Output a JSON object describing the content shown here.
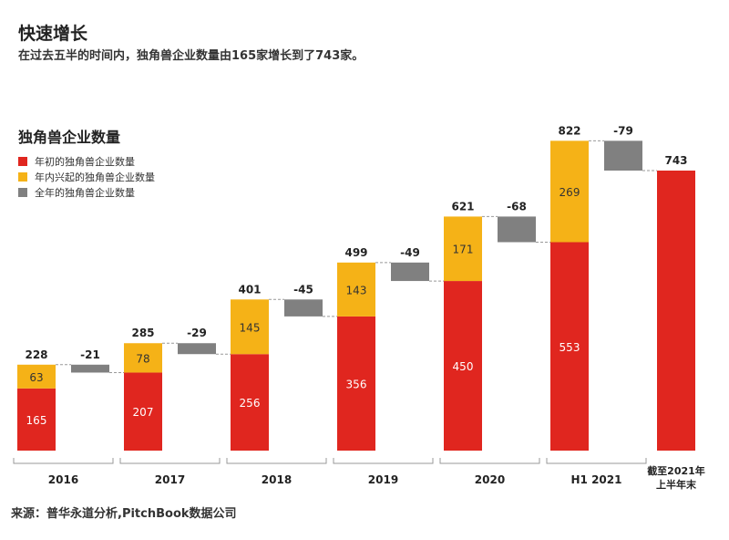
{
  "header": {
    "title": "快速增长",
    "subtitle": "在过去五半的时间内，独角兽企业数量由165家增长到了743家。"
  },
  "source": "来源：普华永道分析,PitchBook数据公司",
  "chart_data": {
    "type": "bar",
    "subtype": "waterfall",
    "title": "独角兽企业数量",
    "legend": [
      {
        "name": "年初的独角兽企业数量",
        "color": "#e0261f"
      },
      {
        "name": "年内兴起的独角兽企业数量",
        "color": "#f5b217"
      },
      {
        "name": "全年的独角兽企业数量",
        "color": "#808080"
      }
    ],
    "legend_placement": "top-left",
    "categories": [
      "2016",
      "2017",
      "2018",
      "2019",
      "2020",
      "H1 2021"
    ],
    "start": [
      165,
      207,
      256,
      356,
      450,
      553
    ],
    "added": [
      63,
      78,
      145,
      143,
      171,
      269
    ],
    "total": [
      228,
      285,
      401,
      499,
      621,
      822
    ],
    "change": [
      -21,
      -29,
      -45,
      -49,
      -68,
      -79
    ],
    "change_labels": [
      "-21",
      "-29",
      "-45",
      "-49",
      "-68",
      "-79"
    ],
    "final": {
      "label_line1": "截至2021年",
      "label_line2": "上半年末",
      "value": 743
    },
    "ylim": [
      0,
      850
    ],
    "grid": false
  }
}
